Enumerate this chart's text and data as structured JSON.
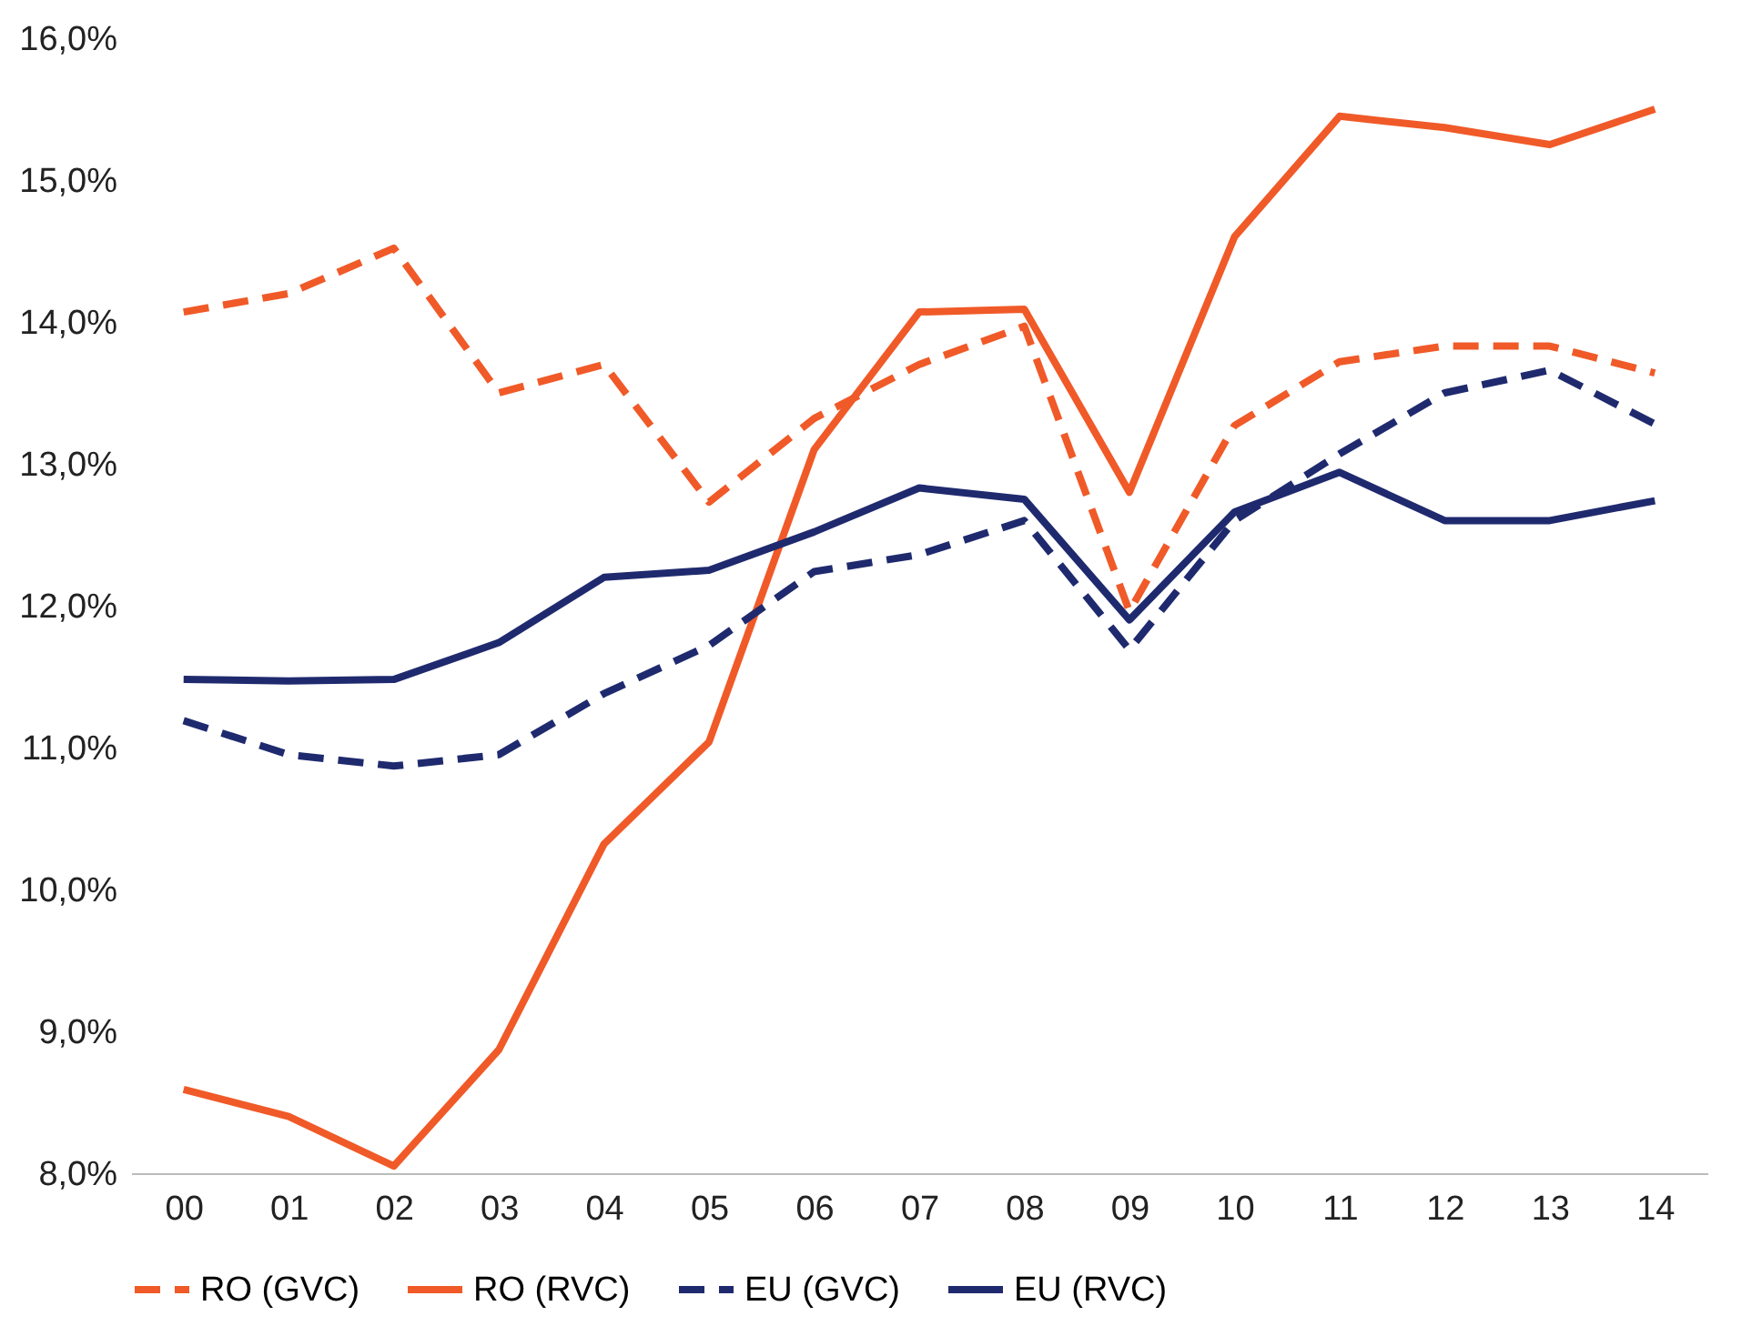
{
  "chart_data": {
    "type": "line",
    "categories": [
      "00",
      "01",
      "02",
      "03",
      "04",
      "05",
      "06",
      "07",
      "08",
      "09",
      "10",
      "11",
      "12",
      "13",
      "14"
    ],
    "ylim": [
      8,
      16
    ],
    "yticks": [
      {
        "value": 8,
        "label": "8,0%"
      },
      {
        "value": 9,
        "label": "9,0%"
      },
      {
        "value": 10,
        "label": "10,0%"
      },
      {
        "value": 11,
        "label": "11,0%"
      },
      {
        "value": 12,
        "label": "12,0%"
      },
      {
        "value": 13,
        "label": "13,0%"
      },
      {
        "value": 14,
        "label": "14,0%"
      },
      {
        "value": 15,
        "label": "15,0%"
      },
      {
        "value": 16,
        "label": "16,0%"
      }
    ],
    "grid": false,
    "legend": "bottom",
    "marker": "none",
    "series": [
      {
        "name": "RO (GVC)",
        "color": "#f05a28",
        "line_style": "dashed",
        "values": [
          14.07,
          14.2,
          14.52,
          13.5,
          13.7,
          12.73,
          13.32,
          13.7,
          13.97,
          11.96,
          13.27,
          13.72,
          13.83,
          13.83,
          13.64
        ]
      },
      {
        "name": "RO (RVC)",
        "color": "#f05a28",
        "line_style": "solid",
        "values": [
          8.59,
          8.4,
          8.05,
          8.87,
          10.32,
          11.04,
          13.1,
          14.07,
          14.09,
          12.8,
          14.6,
          15.45,
          15.37,
          15.25,
          15.5
        ]
      },
      {
        "name": "EU (GVC)",
        "color": "#1f2a6e",
        "line_style": "dashed",
        "values": [
          11.19,
          10.95,
          10.87,
          10.95,
          11.38,
          11.72,
          12.24,
          12.36,
          12.6,
          11.69,
          12.6,
          13.07,
          13.5,
          13.66,
          13.28
        ]
      },
      {
        "name": "EU (RVC)",
        "color": "#1f2a6e",
        "line_style": "solid",
        "values": [
          11.48,
          11.47,
          11.48,
          11.74,
          12.2,
          12.25,
          12.52,
          12.83,
          12.75,
          11.9,
          12.66,
          12.94,
          12.6,
          12.6,
          12.74
        ]
      }
    ]
  }
}
